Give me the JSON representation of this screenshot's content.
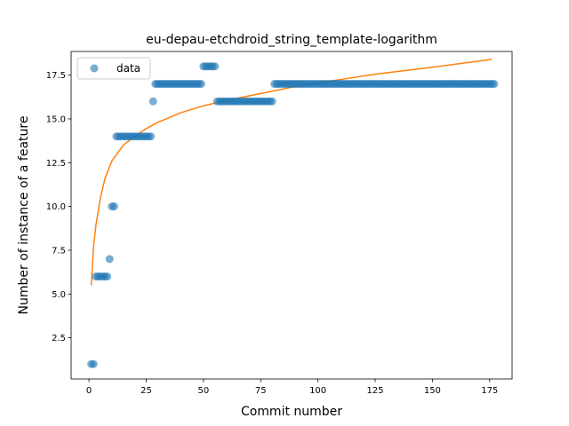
{
  "chart_data": {
    "type": "scatter",
    "title": "eu-depau-etchdroid_string_template-logarithm",
    "xlabel": "Commit number",
    "ylabel": "Number of instance of a feature",
    "xlim": [
      -7.8,
      184.8
    ],
    "ylim": [
      0.15,
      18.85
    ],
    "xticks": [
      0,
      25,
      50,
      75,
      100,
      125,
      150,
      175
    ],
    "yticks": [
      2.5,
      5.0,
      7.5,
      10.0,
      12.5,
      15.0,
      17.5
    ],
    "ytick_labels": [
      "2.5",
      "5.0",
      "7.5",
      "10.0",
      "12.5",
      "15.0",
      "17.5"
    ],
    "legend": {
      "position": "upper-left",
      "entries": [
        "data"
      ]
    },
    "series": [
      {
        "name": "data",
        "kind": "scatter",
        "color": "#1f77b4",
        "points": [
          [
            1,
            1
          ],
          [
            2,
            1
          ],
          [
            3,
            6
          ],
          [
            4,
            6
          ],
          [
            5,
            6
          ],
          [
            6,
            6
          ],
          [
            7,
            6
          ],
          [
            8,
            6
          ],
          [
            9,
            7
          ],
          [
            10,
            10
          ],
          [
            11,
            10
          ],
          [
            12,
            14
          ],
          [
            13,
            14
          ],
          [
            14,
            14
          ],
          [
            15,
            14
          ],
          [
            16,
            14
          ],
          [
            17,
            14
          ],
          [
            18,
            14
          ],
          [
            19,
            14
          ],
          [
            20,
            14
          ],
          [
            21,
            14
          ],
          [
            22,
            14
          ],
          [
            23,
            14
          ],
          [
            24,
            14
          ],
          [
            25,
            14
          ],
          [
            26,
            14
          ],
          [
            27,
            14
          ],
          [
            28,
            16
          ],
          [
            29,
            17
          ],
          [
            30,
            17
          ],
          [
            31,
            17
          ],
          [
            32,
            17
          ],
          [
            33,
            17
          ],
          [
            34,
            17
          ],
          [
            35,
            17
          ],
          [
            36,
            17
          ],
          [
            37,
            17
          ],
          [
            38,
            17
          ],
          [
            39,
            17
          ],
          [
            40,
            17
          ],
          [
            41,
            17
          ],
          [
            42,
            17
          ],
          [
            43,
            17
          ],
          [
            44,
            17
          ],
          [
            45,
            17
          ],
          [
            46,
            17
          ],
          [
            47,
            17
          ],
          [
            48,
            17
          ],
          [
            49,
            17
          ],
          [
            50,
            18
          ],
          [
            51,
            18
          ],
          [
            52,
            18
          ],
          [
            53,
            18
          ],
          [
            54,
            18
          ],
          [
            55,
            18
          ],
          [
            56,
            16
          ],
          [
            57,
            16
          ],
          [
            58,
            16
          ],
          [
            59,
            16
          ],
          [
            60,
            16
          ],
          [
            61,
            16
          ],
          [
            62,
            16
          ],
          [
            63,
            16
          ],
          [
            64,
            16
          ],
          [
            65,
            16
          ],
          [
            66,
            16
          ],
          [
            67,
            16
          ],
          [
            68,
            16
          ],
          [
            69,
            16
          ],
          [
            70,
            16
          ],
          [
            71,
            16
          ],
          [
            72,
            16
          ],
          [
            73,
            16
          ],
          [
            74,
            16
          ],
          [
            75,
            16
          ],
          [
            76,
            16
          ],
          [
            77,
            16
          ],
          [
            78,
            16
          ],
          [
            79,
            16
          ],
          [
            80,
            16
          ],
          [
            81,
            17
          ],
          [
            82,
            17
          ],
          [
            83,
            17
          ],
          [
            84,
            17
          ],
          [
            85,
            17
          ],
          [
            86,
            17
          ],
          [
            87,
            17
          ],
          [
            88,
            17
          ],
          [
            89,
            17
          ],
          [
            90,
            17
          ],
          [
            91,
            17
          ],
          [
            92,
            17
          ],
          [
            93,
            17
          ],
          [
            94,
            17
          ],
          [
            95,
            17
          ],
          [
            96,
            17
          ],
          [
            97,
            17
          ],
          [
            98,
            17
          ],
          [
            99,
            17
          ],
          [
            100,
            17
          ],
          [
            101,
            17
          ],
          [
            102,
            17
          ],
          [
            103,
            17
          ],
          [
            104,
            17
          ],
          [
            105,
            17
          ],
          [
            106,
            17
          ],
          [
            107,
            17
          ],
          [
            108,
            17
          ],
          [
            109,
            17
          ],
          [
            110,
            17
          ],
          [
            111,
            17
          ],
          [
            112,
            17
          ],
          [
            113,
            17
          ],
          [
            114,
            17
          ],
          [
            115,
            17
          ],
          [
            116,
            17
          ],
          [
            117,
            17
          ],
          [
            118,
            17
          ],
          [
            119,
            17
          ],
          [
            120,
            17
          ],
          [
            121,
            17
          ],
          [
            122,
            17
          ],
          [
            123,
            17
          ],
          [
            124,
            17
          ],
          [
            125,
            17
          ],
          [
            126,
            17
          ],
          [
            127,
            17
          ],
          [
            128,
            17
          ],
          [
            129,
            17
          ],
          [
            130,
            17
          ],
          [
            131,
            17
          ],
          [
            132,
            17
          ],
          [
            133,
            17
          ],
          [
            134,
            17
          ],
          [
            135,
            17
          ],
          [
            136,
            17
          ],
          [
            137,
            17
          ],
          [
            138,
            17
          ],
          [
            139,
            17
          ],
          [
            140,
            17
          ],
          [
            141,
            17
          ],
          [
            142,
            17
          ],
          [
            143,
            17
          ],
          [
            144,
            17
          ],
          [
            145,
            17
          ],
          [
            146,
            17
          ],
          [
            147,
            17
          ],
          [
            148,
            17
          ],
          [
            149,
            17
          ],
          [
            150,
            17
          ],
          [
            151,
            17
          ],
          [
            152,
            17
          ],
          [
            153,
            17
          ],
          [
            154,
            17
          ],
          [
            155,
            17
          ],
          [
            156,
            17
          ],
          [
            157,
            17
          ],
          [
            158,
            17
          ],
          [
            159,
            17
          ],
          [
            160,
            17
          ],
          [
            161,
            17
          ],
          [
            162,
            17
          ],
          [
            163,
            17
          ],
          [
            164,
            17
          ],
          [
            165,
            17
          ],
          [
            166,
            17
          ],
          [
            167,
            17
          ],
          [
            168,
            17
          ],
          [
            169,
            17
          ],
          [
            170,
            17
          ],
          [
            171,
            17
          ],
          [
            172,
            17
          ],
          [
            173,
            17
          ],
          [
            174,
            17
          ],
          [
            175,
            17
          ],
          [
            176,
            17
          ],
          [
            177,
            17
          ]
        ]
      },
      {
        "kind": "line",
        "color": "#ff7f0e",
        "points": [
          [
            1,
            5.5
          ],
          [
            2,
            7.7
          ],
          [
            3,
            8.9
          ],
          [
            5,
            10.5
          ],
          [
            7,
            11.6
          ],
          [
            10,
            12.6
          ],
          [
            15,
            13.5
          ],
          [
            20,
            14.0
          ],
          [
            25,
            14.45
          ],
          [
            30,
            14.8
          ],
          [
            40,
            15.35
          ],
          [
            50,
            15.75
          ],
          [
            60,
            16.05
          ],
          [
            75,
            16.45
          ],
          [
            90,
            16.85
          ],
          [
            100,
            17.05
          ],
          [
            110,
            17.25
          ],
          [
            125,
            17.55
          ],
          [
            150,
            17.95
          ],
          [
            176,
            18.4
          ]
        ]
      }
    ]
  }
}
